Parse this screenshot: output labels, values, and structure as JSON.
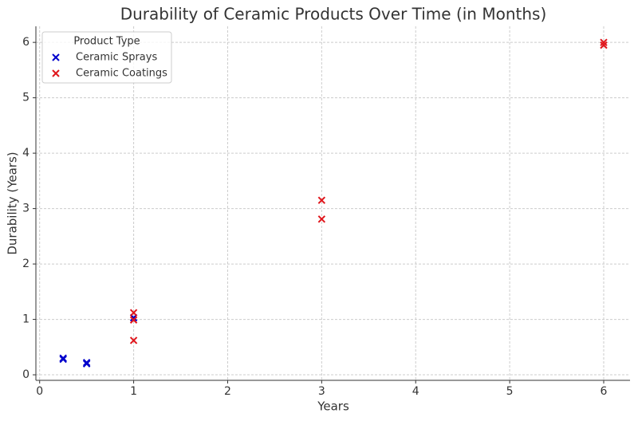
{
  "chart_data": {
    "type": "scatter",
    "title": "Durability of Ceramic Products Over Time (in Months)",
    "x_label": "Years",
    "y_label": "Durability (Years)",
    "legend_title": "Product Type",
    "legend": "upper left",
    "grid": true,
    "marker": "x",
    "xlim": [
      -0.04,
      6.28
    ],
    "ylim": [
      -0.1,
      6.29
    ],
    "xticks": [
      0,
      1,
      2,
      3,
      4,
      5,
      6
    ],
    "yticks": [
      0,
      1,
      2,
      3,
      4,
      5,
      6
    ],
    "series": [
      {
        "name": "Ceramic Sprays",
        "color": "#0000cc",
        "x": [
          0.25,
          0.25,
          0.5,
          0.5,
          1
        ],
        "values": [
          0.3,
          0.28,
          0.2,
          0.22,
          1.03
        ]
      },
      {
        "name": "Ceramic Coatings",
        "color": "#e0161c",
        "x": [
          1,
          1,
          1,
          3,
          3,
          6,
          6
        ],
        "values": [
          1.12,
          0.99,
          0.62,
          3.15,
          2.81,
          6.0,
          5.95
        ]
      }
    ]
  }
}
